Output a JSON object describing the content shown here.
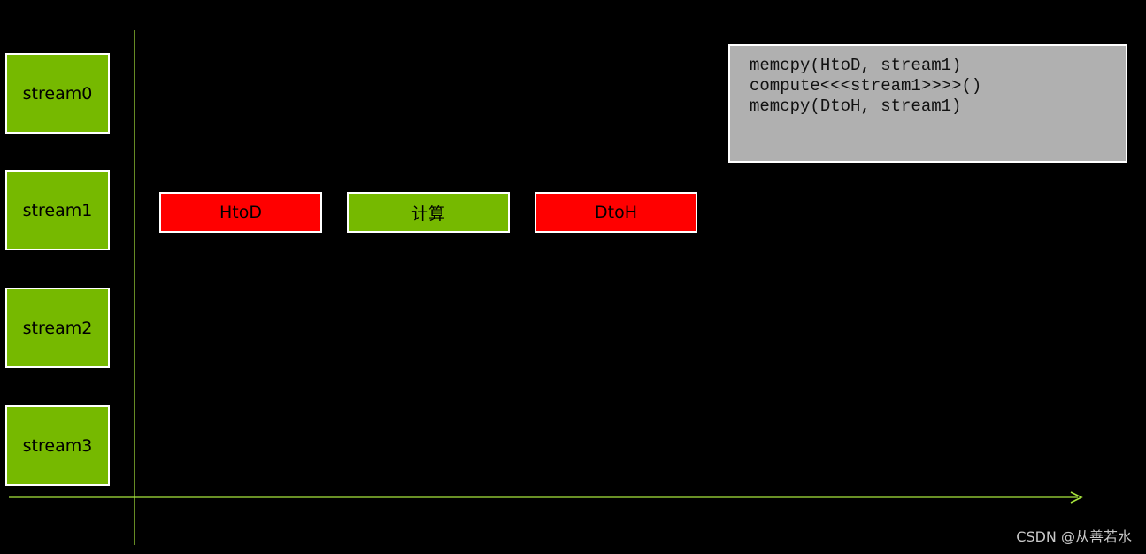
{
  "colors": {
    "background": "#000000",
    "stream_fill": "#76b900",
    "memcpy_fill": "#ff0000",
    "compute_fill": "#76b900",
    "axis": "#a8e63c",
    "code_fill": "#b0b0b0",
    "border": "#ffffff"
  },
  "streams": [
    "stream0",
    "stream1",
    "stream2",
    "stream3"
  ],
  "operations": [
    {
      "label": "HtoD",
      "stream": "stream1",
      "kind": "memcpy"
    },
    {
      "label": "计算",
      "stream": "stream1",
      "kind": "compute"
    },
    {
      "label": "DtoH",
      "stream": "stream1",
      "kind": "memcpy"
    }
  ],
  "code": {
    "lines": [
      "memcpy(HtoD, stream1)",
      "compute<<<stream1>>>>()",
      "memcpy(DtoH, stream1)"
    ]
  },
  "axis_icon": "arrow-right-icon",
  "watermark": "CSDN @从善若水"
}
